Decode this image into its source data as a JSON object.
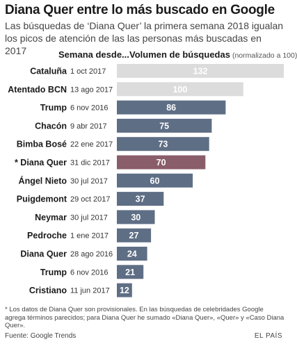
{
  "title": "Diana Quer entre lo más buscado en Google",
  "subtitle": "Las búsquedas de ‘Diana Quer’ la primera semana 2018 igualan los picos de atención de las las personas más buscadas en 2017",
  "headers": {
    "week": "Semana desde...",
    "volume": "Volumen de búsquedas",
    "normalized": "(normalizado a 100)"
  },
  "chart_data": {
    "type": "bar",
    "orientation": "horizontal",
    "xlim": [
      0,
      132
    ],
    "grid": false,
    "categories": [
      "Cataluña",
      "Atentado BCN",
      "Trump",
      "Chacón",
      "Bimba Bosé",
      "* Diana Quer",
      "Ángel Nieto",
      "Puigdemont",
      "Neymar",
      "Pedroche",
      "Diana Quer",
      "Trump",
      "Cristiano"
    ],
    "weeks": [
      "1 oct 2017",
      "13 ago 2017",
      "6 nov 2016",
      "9 abr 2017",
      "22 ene 2017",
      "31 dic 2017",
      "30 jul 2017",
      "29 oct 2017",
      "30 jul 2017",
      "1 ene 2017",
      "28 ago 2016",
      "6 nov 2016",
      "11 jun 2017"
    ],
    "values": [
      132,
      100,
      86,
      75,
      73,
      70,
      60,
      37,
      30,
      27,
      24,
      21,
      12
    ],
    "colors": [
      "#dcdcdc",
      "#dcdcdc",
      "#5e6e85",
      "#5e6e85",
      "#5e6e85",
      "#8a5d6a",
      "#5e6e85",
      "#5e6e85",
      "#5e6e85",
      "#5e6e85",
      "#5e6e85",
      "#5e6e85",
      "#5e6e85"
    ]
  },
  "footnote": "* Los datos de Diana Quer son provisionales. En las búsquedas de celebridades Google agrega términos parecidos; para Diana Quer he sumado «Diana Quer», «Quer» y «Caso Diana Quer».",
  "source": "Fuente: Google Trends",
  "brand": "EL PAÍS"
}
